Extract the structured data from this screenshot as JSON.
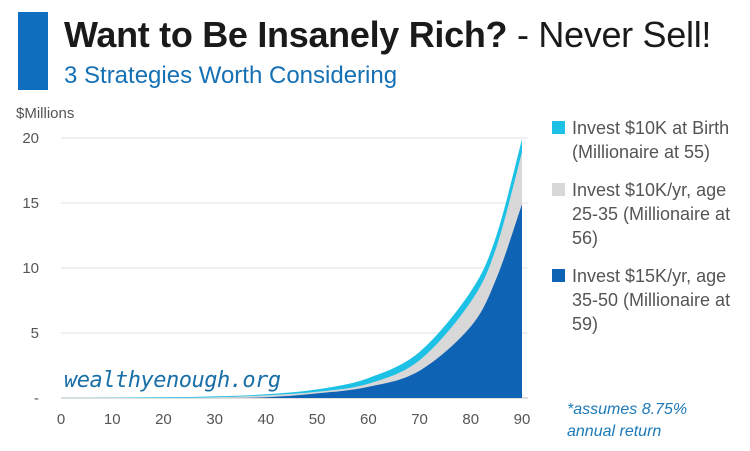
{
  "header": {
    "title_bold": "Want to Be Insanely Rich?",
    "title_rest": "- Never Sell!",
    "subtitle": "3 Strategies Worth Considering",
    "accent_color": "#0f6ec0"
  },
  "watermark": "wealthyenough.org",
  "note": [
    "*assumes 8.75%",
    "annual return"
  ],
  "chart_data": {
    "type": "area",
    "title": "Want to Be Insanely Rich? - Never Sell!",
    "subtitle": "3 Strategies Worth Considering",
    "ylabel": "$Millions",
    "xlabel": "",
    "xlim": [
      0,
      90
    ],
    "ylim": [
      0,
      20
    ],
    "xticks": [
      "0",
      "10",
      "20",
      "30",
      "40",
      "50",
      "60",
      "70",
      "80",
      "90"
    ],
    "yticks": [
      "-",
      "5",
      "10",
      "15",
      "20"
    ],
    "grid": "horizontal",
    "legend_position": "right",
    "x": [
      0,
      10,
      20,
      30,
      40,
      50,
      60,
      70,
      80,
      85,
      90
    ],
    "series": [
      {
        "name": "Invest $10K at Birth (Millionaire at 55)",
        "color": "#1ec1e6",
        "values": [
          0.01,
          0.023,
          0.053,
          0.123,
          0.285,
          0.66,
          1.53,
          3.55,
          8.2,
          12.5,
          19.9
        ]
      },
      {
        "name": "Invest $10K/yr, age 25-35 (Millionaire at 56)",
        "color": "#d8d8d8",
        "values": [
          0,
          0,
          0,
          0.05,
          0.2,
          0.48,
          1.1,
          2.9,
          7.4,
          11.6,
          18.9
        ]
      },
      {
        "name": "Invest $15K/yr, age 35-50 (Millionaire at 59)",
        "color": "#0f63b5",
        "values": [
          0,
          0,
          0,
          0,
          0.06,
          0.35,
          0.85,
          2.1,
          5.5,
          9.2,
          14.9
        ]
      }
    ]
  }
}
